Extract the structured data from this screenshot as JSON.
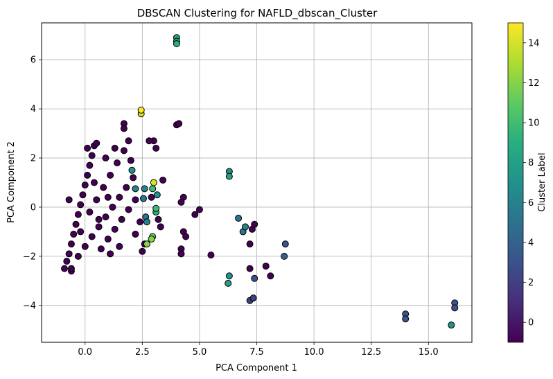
{
  "chart_data": {
    "type": "scatter",
    "title": "DBSCAN Clustering for NAFLD_dbscan_Cluster",
    "xlabel": "PCA Component 1",
    "ylabel": "PCA Component 2",
    "xlim": [
      -1.9,
      16.9
    ],
    "ylim": [
      -5.5,
      7.5
    ],
    "xticks": [
      "0.0",
      "2.5",
      "5.0",
      "7.5",
      "10.0",
      "12.5",
      "15.0"
    ],
    "yticks": [
      "−4",
      "−2",
      "0",
      "2",
      "4",
      "6"
    ],
    "grid": true,
    "colorbar": {
      "label": "Cluster Label",
      "range": [
        -1,
        15
      ],
      "ticks": [
        "0",
        "2",
        "4",
        "6",
        "8",
        "10",
        "12",
        "14"
      ],
      "colormap": "viridis"
    },
    "marker_edge_color": "#000000",
    "points": [
      {
        "x": -0.9,
        "y": -2.5,
        "c": -1
      },
      {
        "x": -0.8,
        "y": -2.2,
        "c": -1
      },
      {
        "x": -0.7,
        "y": -1.9,
        "c": -1
      },
      {
        "x": -0.6,
        "y": -1.5,
        "c": -1
      },
      {
        "x": -0.5,
        "y": -1.1,
        "c": -1
      },
      {
        "x": -0.4,
        "y": -0.7,
        "c": -1
      },
      {
        "x": -0.3,
        "y": -0.3,
        "c": -1
      },
      {
        "x": -0.2,
        "y": 0.1,
        "c": -1
      },
      {
        "x": -0.1,
        "y": 0.5,
        "c": -1
      },
      {
        "x": 0.0,
        "y": 0.9,
        "c": -1
      },
      {
        "x": 0.1,
        "y": 1.3,
        "c": -1
      },
      {
        "x": 0.2,
        "y": 1.7,
        "c": -1
      },
      {
        "x": 0.3,
        "y": 2.1,
        "c": -1
      },
      {
        "x": 0.4,
        "y": 2.5,
        "c": -1
      },
      {
        "x": 0.5,
        "y": 2.6,
        "c": -1
      },
      {
        "x": -0.6,
        "y": -2.6,
        "c": -1
      },
      {
        "x": -0.3,
        "y": -2.0,
        "c": -1
      },
      {
        "x": 0.0,
        "y": -1.6,
        "c": -1
      },
      {
        "x": 0.3,
        "y": -1.2,
        "c": -1
      },
      {
        "x": 0.6,
        "y": -0.8,
        "c": -1
      },
      {
        "x": 0.9,
        "y": -0.4,
        "c": -1
      },
      {
        "x": 1.2,
        "y": 0.0,
        "c": -1
      },
      {
        "x": 1.5,
        "y": 0.4,
        "c": -1
      },
      {
        "x": 1.8,
        "y": 0.8,
        "c": -1
      },
      {
        "x": 2.1,
        "y": 1.2,
        "c": -1
      },
      {
        "x": 0.2,
        "y": -0.2,
        "c": -1
      },
      {
        "x": 0.5,
        "y": 0.3,
        "c": -1
      },
      {
        "x": 0.8,
        "y": 0.8,
        "c": -1
      },
      {
        "x": 1.1,
        "y": 1.3,
        "c": -1
      },
      {
        "x": 1.4,
        "y": 1.8,
        "c": -1
      },
      {
        "x": 1.7,
        "y": 2.3,
        "c": -1
      },
      {
        "x": 1.9,
        "y": 2.7,
        "c": -1
      },
      {
        "x": 1.7,
        "y": 3.4,
        "c": -1
      },
      {
        "x": 1.7,
        "y": 3.2,
        "c": -1
      },
      {
        "x": 0.7,
        "y": -1.7,
        "c": -1
      },
      {
        "x": 1.0,
        "y": -1.3,
        "c": -1
      },
      {
        "x": 1.3,
        "y": -0.9,
        "c": -1
      },
      {
        "x": 1.6,
        "y": -0.5,
        "c": -1
      },
      {
        "x": 1.9,
        "y": -0.1,
        "c": -1
      },
      {
        "x": 2.2,
        "y": 0.3,
        "c": -1
      },
      {
        "x": 2.4,
        "y": -0.6,
        "c": -1
      },
      {
        "x": 2.6,
        "y": -1.5,
        "c": -1
      },
      {
        "x": 2.5,
        "y": -1.8,
        "c": -1
      },
      {
        "x": 3.0,
        "y": 2.7,
        "c": -1
      },
      {
        "x": 3.1,
        "y": 2.4,
        "c": -1
      },
      {
        "x": 2.8,
        "y": 2.7,
        "c": -1
      },
      {
        "x": 3.4,
        "y": 1.1,
        "c": -1
      },
      {
        "x": 3.2,
        "y": -0.5,
        "c": -1
      },
      {
        "x": 3.3,
        "y": -0.8,
        "c": -1
      },
      {
        "x": 2.9,
        "y": 0.4,
        "c": -1
      },
      {
        "x": 0.4,
        "y": 1.0,
        "c": -1
      },
      {
        "x": -0.2,
        "y": -1.0,
        "c": -1
      },
      {
        "x": 0.9,
        "y": 2.0,
        "c": -1
      },
      {
        "x": 1.3,
        "y": 2.4,
        "c": -1
      },
      {
        "x": 0.6,
        "y": -0.5,
        "c": -1
      },
      {
        "x": 1.0,
        "y": 0.4,
        "c": -1
      },
      {
        "x": 2.0,
        "y": 1.9,
        "c": -1
      },
      {
        "x": -0.6,
        "y": -2.5,
        "c": -1
      },
      {
        "x": 1.5,
        "y": -1.6,
        "c": -1
      },
      {
        "x": 2.2,
        "y": -1.1,
        "c": -1
      },
      {
        "x": 1.1,
        "y": -1.9,
        "c": -1
      },
      {
        "x": 0.1,
        "y": 2.4,
        "c": -1
      },
      {
        "x": -0.7,
        "y": 0.3,
        "c": -1
      },
      {
        "x": 4.0,
        "y": 3.35,
        "c": -1
      },
      {
        "x": 4.1,
        "y": 3.4,
        "c": -1
      },
      {
        "x": 4.3,
        "y": 0.4,
        "c": -1
      },
      {
        "x": 4.2,
        "y": 0.2,
        "c": -1
      },
      {
        "x": 4.3,
        "y": -1.0,
        "c": -1
      },
      {
        "x": 4.4,
        "y": -1.2,
        "c": -1
      },
      {
        "x": 4.2,
        "y": -1.7,
        "c": -1
      },
      {
        "x": 4.2,
        "y": -1.9,
        "c": -1
      },
      {
        "x": 4.8,
        "y": -0.3,
        "c": -1
      },
      {
        "x": 5.0,
        "y": -0.1,
        "c": -1
      },
      {
        "x": 5.5,
        "y": -1.95,
        "c": -1
      },
      {
        "x": 7.2,
        "y": -2.5,
        "c": -1
      },
      {
        "x": 7.9,
        "y": -2.4,
        "c": -1
      },
      {
        "x": 8.1,
        "y": -2.8,
        "c": -1
      },
      {
        "x": 7.2,
        "y": -1.5,
        "c": -1
      },
      {
        "x": 7.3,
        "y": -0.9,
        "c": -1
      },
      {
        "x": 7.4,
        "y": -0.7,
        "c": -1
      },
      {
        "x": 4.0,
        "y": 6.9,
        "c": 8
      },
      {
        "x": 4.0,
        "y": 6.75,
        "c": 8
      },
      {
        "x": 4.0,
        "y": 6.65,
        "c": 9
      },
      {
        "x": 2.45,
        "y": 3.95,
        "c": 15
      },
      {
        "x": 2.45,
        "y": 3.8,
        "c": 14
      },
      {
        "x": 2.05,
        "y": 1.5,
        "c": 7
      },
      {
        "x": 2.2,
        "y": 0.75,
        "c": 6
      },
      {
        "x": 2.6,
        "y": 0.75,
        "c": 6
      },
      {
        "x": 2.55,
        "y": 0.35,
        "c": 5
      },
      {
        "x": 2.65,
        "y": -0.4,
        "c": 5
      },
      {
        "x": 2.7,
        "y": -0.6,
        "c": 6
      },
      {
        "x": 2.7,
        "y": -1.5,
        "c": 12
      },
      {
        "x": 2.95,
        "y": -1.2,
        "c": 11
      },
      {
        "x": 2.95,
        "y": 0.75,
        "c": 10
      },
      {
        "x": 3.0,
        "y": 1.0,
        "c": 14
      },
      {
        "x": 3.15,
        "y": 0.5,
        "c": 7
      },
      {
        "x": 3.1,
        "y": -0.05,
        "c": 10
      },
      {
        "x": 3.1,
        "y": -0.2,
        "c": 9
      },
      {
        "x": 2.9,
        "y": -1.3,
        "c": 12
      },
      {
        "x": 6.3,
        "y": 1.45,
        "c": 7
      },
      {
        "x": 6.3,
        "y": 1.25,
        "c": 8
      },
      {
        "x": 6.7,
        "y": -0.45,
        "c": 5
      },
      {
        "x": 6.9,
        "y": -1.0,
        "c": 5
      },
      {
        "x": 7.0,
        "y": -0.8,
        "c": 6
      },
      {
        "x": 6.3,
        "y": -2.8,
        "c": 7
      },
      {
        "x": 6.25,
        "y": -3.1,
        "c": 8
      },
      {
        "x": 7.2,
        "y": -3.8,
        "c": 2
      },
      {
        "x": 7.4,
        "y": -2.9,
        "c": 3
      },
      {
        "x": 7.35,
        "y": -3.7,
        "c": 2
      },
      {
        "x": 8.7,
        "y": -2.0,
        "c": 4
      },
      {
        "x": 8.75,
        "y": -1.5,
        "c": 3
      },
      {
        "x": 14.0,
        "y": -4.35,
        "c": 3
      },
      {
        "x": 14.0,
        "y": -4.55,
        "c": 3
      },
      {
        "x": 16.0,
        "y": -4.8,
        "c": 7
      },
      {
        "x": 16.15,
        "y": -3.9,
        "c": 3
      },
      {
        "x": 16.15,
        "y": -4.1,
        "c": 3
      }
    ]
  }
}
